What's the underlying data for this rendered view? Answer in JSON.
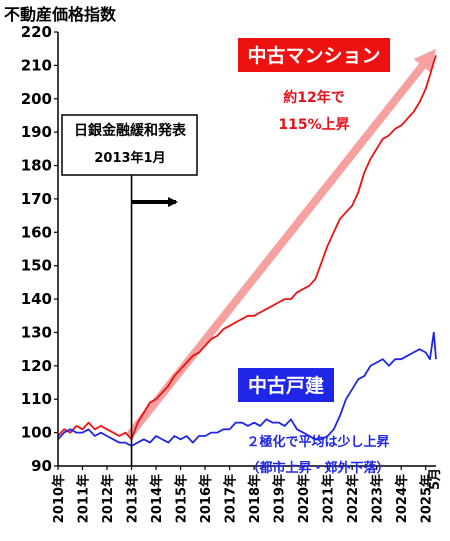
{
  "chart_data": {
    "type": "line",
    "title": "不動産価格指数",
    "ylim": [
      90,
      220
    ],
    "yticks": [
      90,
      100,
      110,
      120,
      130,
      140,
      150,
      160,
      170,
      180,
      190,
      200,
      210,
      220
    ],
    "xlim": [
      2010.0,
      2025.42
    ],
    "x_tick_labels": [
      "2010年",
      "2011年",
      "2012年",
      "2013年",
      "2014年",
      "2015年",
      "2016年",
      "2017年",
      "2018年",
      "2019年",
      "2020年",
      "2021年",
      "2022年",
      "2023年",
      "2024年",
      "2025年"
    ],
    "x_end_label": "5月",
    "series": [
      {
        "name": "中古マンション",
        "color": "#ee1111",
        "x": [
          2010.0,
          2010.25,
          2010.5,
          2010.75,
          2011.0,
          2011.25,
          2011.5,
          2011.75,
          2012.0,
          2012.25,
          2012.5,
          2012.75,
          2013.0,
          2013.25,
          2013.5,
          2013.75,
          2014.0,
          2014.25,
          2014.5,
          2014.75,
          2015.0,
          2015.25,
          2015.5,
          2015.75,
          2016.0,
          2016.25,
          2016.5,
          2016.75,
          2017.0,
          2017.25,
          2017.5,
          2017.75,
          2018.0,
          2018.25,
          2018.5,
          2018.75,
          2019.0,
          2019.25,
          2019.5,
          2019.75,
          2020.0,
          2020.25,
          2020.5,
          2020.75,
          2021.0,
          2021.25,
          2021.5,
          2021.75,
          2022.0,
          2022.25,
          2022.5,
          2022.75,
          2023.0,
          2023.25,
          2023.5,
          2023.75,
          2024.0,
          2024.25,
          2024.5,
          2024.75,
          2025.0,
          2025.17,
          2025.33,
          2025.42
        ],
        "values": [
          99,
          101,
          100,
          102,
          101,
          103,
          101,
          102,
          101,
          100,
          99,
          100,
          98,
          103,
          106,
          109,
          110,
          112,
          114,
          117,
          119,
          121,
          123,
          124,
          126,
          128,
          129,
          131,
          132,
          133,
          134,
          135,
          135,
          136,
          137,
          138,
          139,
          140,
          140,
          142,
          143,
          144,
          146,
          151,
          156,
          160,
          164,
          166,
          168,
          172,
          178,
          182,
          185,
          188,
          189,
          191,
          192,
          194,
          196,
          199,
          203,
          207,
          211,
          213
        ]
      },
      {
        "name": "中古戸建",
        "color": "#1f26e6",
        "x": [
          2010.0,
          2010.25,
          2010.5,
          2010.75,
          2011.0,
          2011.25,
          2011.5,
          2011.75,
          2012.0,
          2012.25,
          2012.5,
          2012.75,
          2013.0,
          2013.25,
          2013.5,
          2013.75,
          2014.0,
          2014.25,
          2014.5,
          2014.75,
          2015.0,
          2015.25,
          2015.5,
          2015.75,
          2016.0,
          2016.25,
          2016.5,
          2016.75,
          2017.0,
          2017.25,
          2017.5,
          2017.75,
          2018.0,
          2018.25,
          2018.5,
          2018.75,
          2019.0,
          2019.25,
          2019.5,
          2019.75,
          2020.0,
          2020.25,
          2020.5,
          2020.75,
          2021.0,
          2021.25,
          2021.5,
          2021.75,
          2022.0,
          2022.25,
          2022.5,
          2022.75,
          2023.0,
          2023.25,
          2023.5,
          2023.75,
          2024.0,
          2024.25,
          2024.5,
          2024.75,
          2025.0,
          2025.17,
          2025.33,
          2025.42
        ],
        "values": [
          98,
          100,
          101,
          100,
          100,
          101,
          99,
          100,
          99,
          98,
          97,
          97,
          96,
          97,
          98,
          97,
          99,
          98,
          97,
          99,
          98,
          99,
          97,
          99,
          99,
          100,
          100,
          101,
          101,
          103,
          103,
          102,
          103,
          102,
          104,
          103,
          103,
          102,
          104,
          101,
          100,
          99,
          98,
          98,
          99,
          101,
          105,
          110,
          113,
          116,
          117,
          120,
          121,
          122,
          120,
          122,
          122,
          123,
          124,
          125,
          124,
          122,
          130,
          122
        ]
      }
    ],
    "annotations": {
      "condo_label": "中古マンション",
      "condo_note_1": "約12年で",
      "condo_note_2": "115%上昇",
      "house_label": "中古戸建",
      "house_note_1": "２極化で平均は少し上昇",
      "house_note_2": "（都市上昇・郊外下落）",
      "boj_box_1": "日銀金融緩和発表",
      "boj_box_2": "2013年1月",
      "boj_event_x": 2013.0,
      "trend_arrow_from": {
        "x": 2013.0,
        "y": 100
      },
      "trend_arrow_to": {
        "x": 2025.42,
        "y": 215
      }
    }
  }
}
